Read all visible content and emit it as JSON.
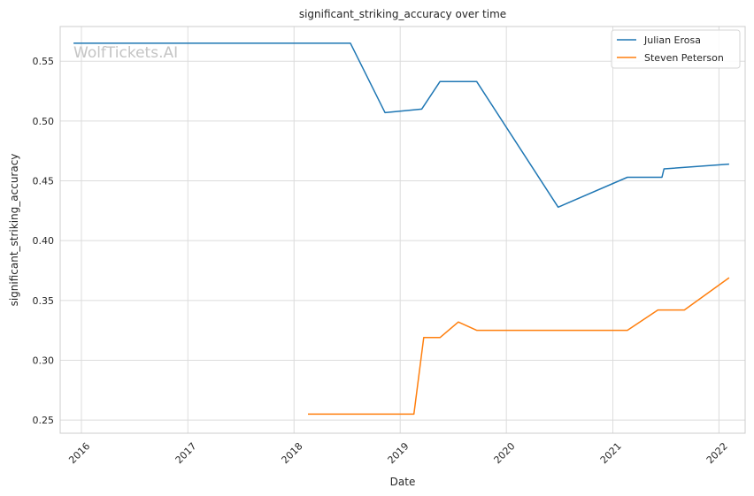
{
  "chart_data": {
    "type": "line",
    "title": "significant_striking_accuracy over time",
    "xlabel": "Date",
    "ylabel": "significant_striking_accuracy",
    "watermark": "WolfTickets.AI",
    "x_ticks": [
      "2016",
      "2017",
      "2018",
      "2019",
      "2020",
      "2021",
      "2022"
    ],
    "y_ticks": [
      "0.25",
      "0.30",
      "0.35",
      "0.40",
      "0.45",
      "0.50",
      "0.55"
    ],
    "xlim": [
      "2015-10-20",
      "2022-04-01"
    ],
    "ylim": [
      0.239,
      0.579
    ],
    "grid": true,
    "legend_position": "top-right",
    "colors": {
      "Julian Erosa": "#1f77b4",
      "Steven Peterson": "#ff7f0e"
    },
    "series": [
      {
        "name": "Julian Erosa",
        "color": "#1f77b4",
        "points": [
          {
            "x": "2015-12-05",
            "y": 0.565
          },
          {
            "x": "2018-07-14",
            "y": 0.565
          },
          {
            "x": "2018-11-10",
            "y": 0.507
          },
          {
            "x": "2019-03-16",
            "y": 0.51
          },
          {
            "x": "2019-05-18",
            "y": 0.533
          },
          {
            "x": "2019-09-21",
            "y": 0.533
          },
          {
            "x": "2020-06-27",
            "y": 0.428
          },
          {
            "x": "2021-02-20",
            "y": 0.453
          },
          {
            "x": "2021-06-19",
            "y": 0.453
          },
          {
            "x": "2021-06-26",
            "y": 0.46
          },
          {
            "x": "2022-02-05",
            "y": 0.464
          }
        ]
      },
      {
        "name": "Steven Peterson",
        "color": "#ff7f0e",
        "points": [
          {
            "x": "2018-02-18",
            "y": 0.255
          },
          {
            "x": "2019-02-17",
            "y": 0.255
          },
          {
            "x": "2019-03-23",
            "y": 0.319
          },
          {
            "x": "2019-05-18",
            "y": 0.319
          },
          {
            "x": "2019-07-20",
            "y": 0.332
          },
          {
            "x": "2019-09-21",
            "y": 0.325
          },
          {
            "x": "2021-02-20",
            "y": 0.325
          },
          {
            "x": "2021-06-05",
            "y": 0.342
          },
          {
            "x": "2021-09-04",
            "y": 0.342
          },
          {
            "x": "2022-02-05",
            "y": 0.369
          }
        ]
      }
    ]
  }
}
